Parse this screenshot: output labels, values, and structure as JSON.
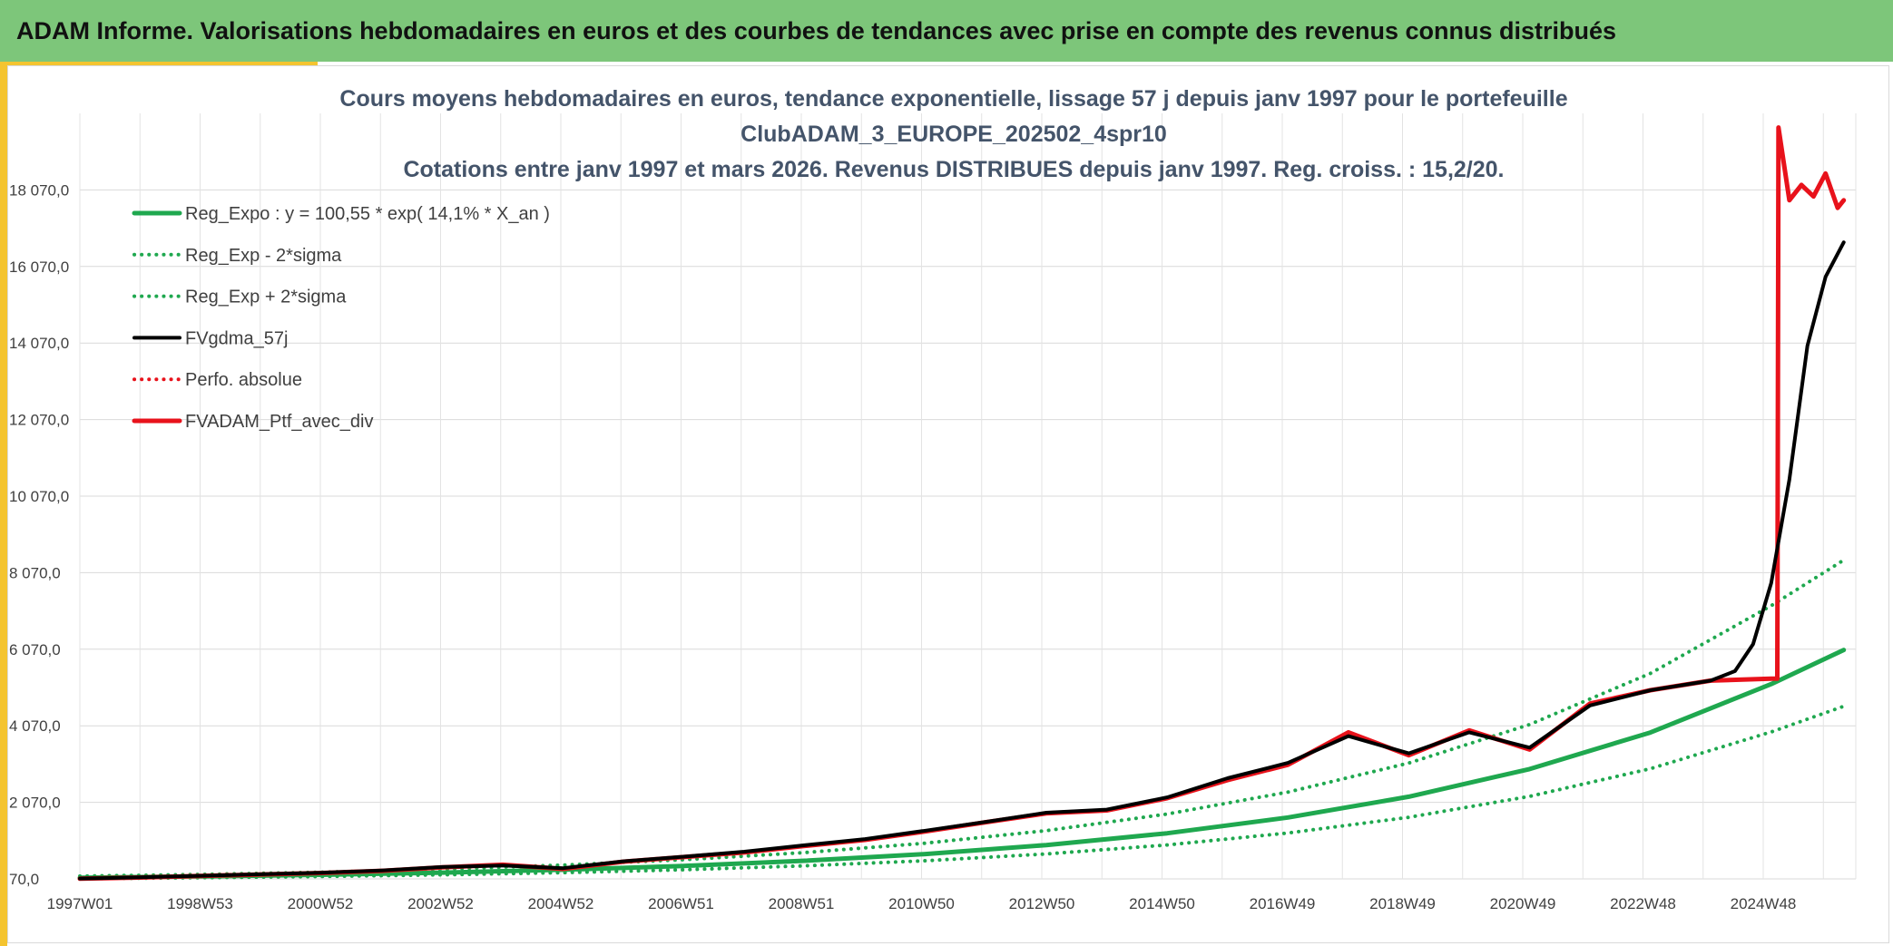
{
  "header": {
    "title": "ADAM Informe. Valorisations hebdomadaires en euros et des courbes de tendances avec prise en compte des revenus connus distribués"
  },
  "chart_data": {
    "type": "line",
    "title_lines": [
      "Cours moyens hebdomadaires en euros, tendance exponentielle, lissage 57 j depuis janv 1997 pour le portefeuille",
      "ClubADAM_3_EUROPE_202502_4spr10",
      "Cotations entre janv 1997 et mars 2026. Revenus DISTRIBUES depuis janv 1997. Reg. croiss. : 15,2/20."
    ],
    "x_tick_labels": [
      "1997W01",
      "1998W53",
      "2000W52",
      "2002W52",
      "2004W52",
      "2006W51",
      "2008W51",
      "2010W50",
      "2012W50",
      "2014W50",
      "2016W49",
      "2018W49",
      "2020W49",
      "2022W48",
      "2024W48"
    ],
    "y_tick_labels": [
      "70,0",
      "2 070,0",
      "4 070,0",
      "6 070,0",
      "8 070,0",
      "10 070,0",
      "12 070,0",
      "14 070,0",
      "16 070,0",
      "18 070,0"
    ],
    "ylim": [
      70,
      20000
    ],
    "grid": true,
    "legend_position": "top-left",
    "colors": {
      "reg_expo": "#1fa84f",
      "band": "#1fa84f",
      "fvgdma": "#000000",
      "perfo": "#e8121b",
      "ptf": "#e8121b"
    },
    "series": [
      {
        "name": "Reg_Expo : y = 100,55 * exp( 14,1% *  X_an )",
        "style": "solid",
        "x_years": [
          0,
          2,
          4,
          6,
          8,
          10,
          12,
          14,
          16,
          18,
          20,
          22,
          24,
          26,
          28,
          29.2
        ],
        "values": [
          100,
          133,
          176,
          233,
          309,
          410,
          543,
          719,
          953,
          1263,
          1674,
          2218,
          2939,
          3894,
          5160,
          6050
        ]
      },
      {
        "name": "Reg_Exp - 2*sigma",
        "style": "dotted",
        "x_years": [
          0,
          2,
          4,
          6,
          8,
          10,
          12,
          14,
          16,
          18,
          20,
          22,
          24,
          26,
          28,
          29.2
        ],
        "values": [
          75,
          100,
          133,
          176,
          233,
          310,
          411,
          545,
          722,
          957,
          1268,
          1680,
          2226,
          2950,
          3908,
          4580
        ]
      },
      {
        "name": "Reg_Exp + 2*sigma",
        "style": "dotted",
        "x_years": [
          0,
          2,
          4,
          6,
          8,
          10,
          12,
          14,
          16,
          18,
          20,
          22,
          24,
          26,
          28,
          29.2
        ],
        "values": [
          140,
          185,
          245,
          325,
          431,
          572,
          758,
          1004,
          1331,
          1764,
          2337,
          3097,
          4104,
          5439,
          7207,
          8400
        ]
      },
      {
        "name": "FVgdma_57j",
        "style": "solid",
        "x_years": [
          0,
          1,
          2,
          3,
          4,
          5,
          6,
          7,
          8,
          9,
          10,
          11,
          12,
          13,
          14,
          15,
          16,
          17,
          18,
          19,
          20,
          21,
          22,
          23,
          24,
          25,
          26,
          27,
          27.4,
          27.7,
          28.0,
          28.3,
          28.6,
          28.9,
          29.2
        ],
        "values": [
          80,
          110,
          150,
          190,
          230,
          290,
          380,
          420,
          350,
          530,
          650,
          780,
          950,
          1110,
          1330,
          1560,
          1800,
          1880,
          2200,
          2700,
          3100,
          3800,
          3350,
          3900,
          3500,
          4600,
          5000,
          5250,
          5500,
          6200,
          7800,
          10500,
          14000,
          15800,
          16700
        ]
      },
      {
        "name": "Perfo. absolue",
        "style": "dotted",
        "x_years": [
          0,
          1,
          2,
          3,
          4,
          5,
          6,
          7,
          8,
          9,
          10,
          11,
          12,
          13,
          14,
          15,
          16,
          17,
          18,
          19,
          20,
          21,
          22,
          23,
          24,
          25,
          26,
          27,
          28.1
        ],
        "values": [
          75,
          105,
          145,
          185,
          225,
          280,
          370,
          440,
          330,
          520,
          640,
          760,
          930,
          1090,
          1310,
          1550,
          1780,
          1860,
          2180,
          2650,
          3050,
          3900,
          3300,
          3950,
          3450,
          4650,
          5000,
          5250,
          5300
        ]
      },
      {
        "name": "FVADAM_Ptf_avec_div",
        "style": "solid",
        "x_years": [
          0,
          1,
          2,
          3,
          4,
          5,
          6,
          7,
          8,
          9,
          10,
          11,
          12,
          13,
          14,
          15,
          16,
          17,
          18,
          19,
          20,
          21,
          22,
          23,
          24,
          25,
          26,
          27,
          28,
          28.1,
          28.12,
          28.3,
          28.5,
          28.7,
          28.9,
          29.1,
          29.2
        ],
        "values": [
          75,
          105,
          145,
          185,
          225,
          280,
          370,
          440,
          330,
          520,
          640,
          760,
          930,
          1090,
          1310,
          1550,
          1780,
          1860,
          2180,
          2650,
          3050,
          3900,
          3300,
          3950,
          3450,
          4650,
          5000,
          5250,
          5300,
          5300,
          19700,
          17800,
          18200,
          17900,
          18500,
          17600,
          17800
        ]
      }
    ]
  }
}
